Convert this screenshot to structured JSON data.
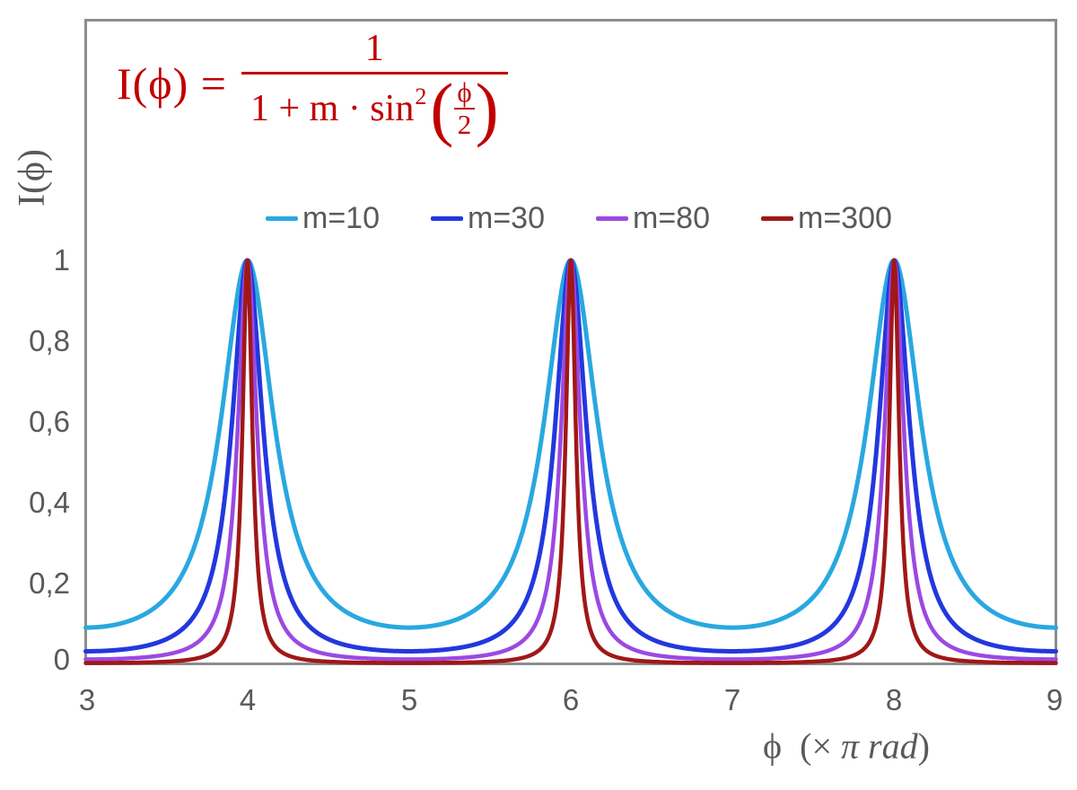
{
  "formula": {
    "lhs": "I(ϕ) =",
    "numerator": "1",
    "denominator_prefix": "1 + m · sin",
    "denominator_sup": "2",
    "open_paren": "(",
    "close_paren": ")",
    "inner_numerator": "ϕ",
    "inner_denominator": "2",
    "color": "#C00000"
  },
  "legend": {
    "items": [
      {
        "label": "m=10",
        "color": "#29A8E0"
      },
      {
        "label": "m=30",
        "color": "#2238DE"
      },
      {
        "label": "m=80",
        "color": "#9B49E2"
      },
      {
        "label": "m=300",
        "color": "#A01717"
      }
    ]
  },
  "axes": {
    "y_title": "I(ϕ)",
    "x_title_phi": "ϕ",
    "x_title_open": "(×",
    "x_title_italic": "π rad",
    "x_title_close": ")",
    "x_ticks": [
      "3",
      "4",
      "5",
      "6",
      "7",
      "8",
      "9"
    ],
    "y_ticks": [
      "1",
      "0,8",
      "0,6",
      "0,4",
      "0,2",
      "0"
    ],
    "tick_color": "#595959",
    "frame_color": "#8C8C8C"
  },
  "chart_data": {
    "type": "line",
    "title": "",
    "formula_text": "I(phi) = 1 / (1 + m * sin^2(phi/2))",
    "xlabel": "ϕ (× π rad)",
    "ylabel": "I(ϕ)",
    "xlim": [
      3,
      9
    ],
    "ylim": [
      0,
      1.6
    ],
    "x_tick_values": [
      3,
      4,
      5,
      6,
      7,
      8,
      9
    ],
    "y_tick_values": [
      1,
      0.8,
      0.6,
      0.4,
      0.2,
      0
    ],
    "grid": false,
    "legend_position": "top-center-inside",
    "x_units": "multiples of pi radians",
    "peaks_at_x": [
      4,
      6,
      8
    ],
    "peak_value": 1,
    "minimum_value_rule": "1/(1+m) at odd x",
    "series": [
      {
        "name": "m=10",
        "m": 10,
        "color": "#29A8E0",
        "stroke_width": 5,
        "min_value": 0.0909
      },
      {
        "name": "m=30",
        "m": 30,
        "color": "#2238DE",
        "stroke_width": 5,
        "min_value": 0.0323
      },
      {
        "name": "m=80",
        "m": 80,
        "color": "#9B49E2",
        "stroke_width": 4.5,
        "min_value": 0.0123
      },
      {
        "name": "m=300",
        "m": 300,
        "color": "#A01717",
        "stroke_width": 4.5,
        "min_value": 0.0033
      }
    ],
    "sample_step": 0.0025
  }
}
